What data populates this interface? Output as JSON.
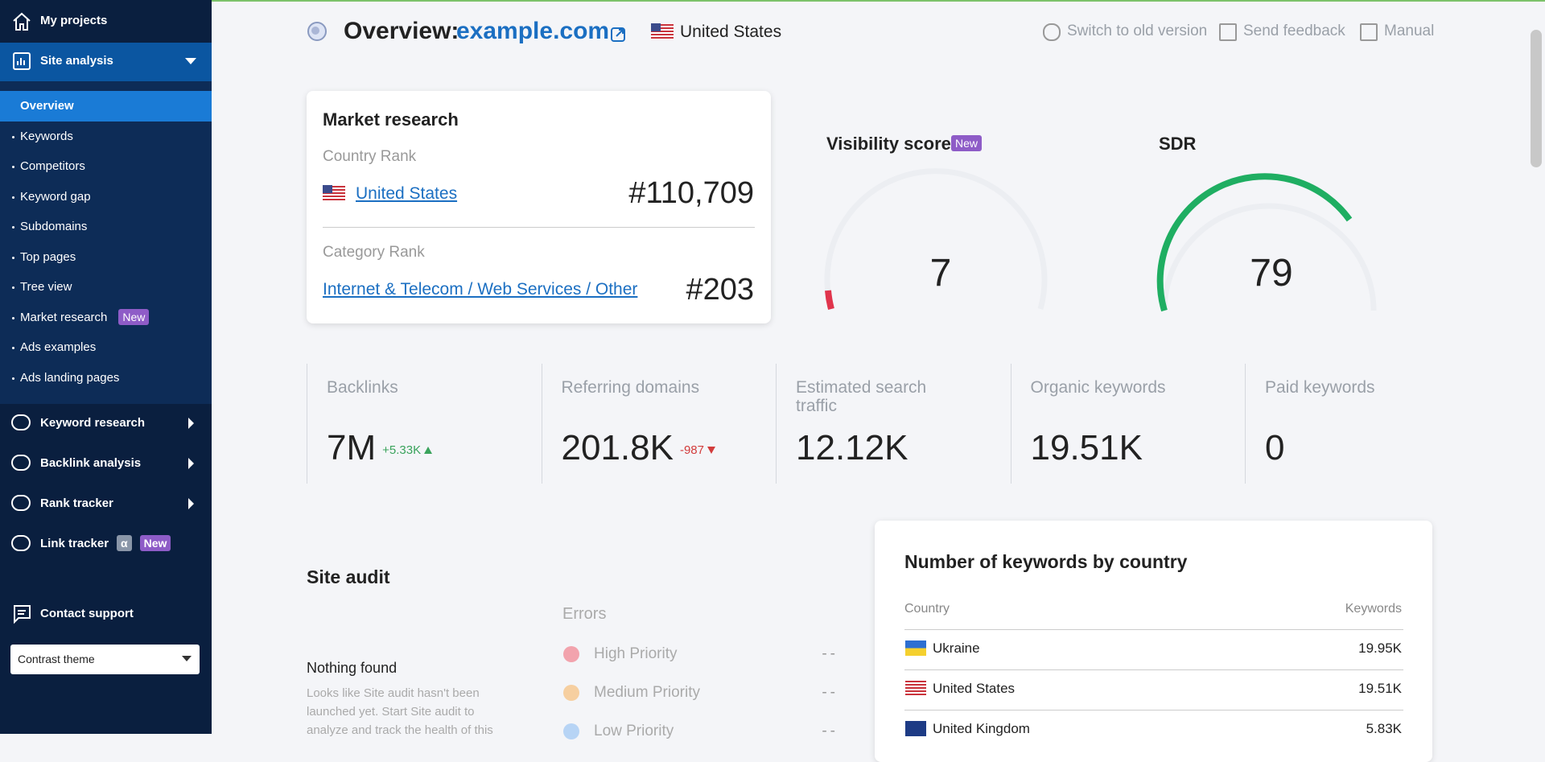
{
  "sidebar": {
    "my_projects": "My projects",
    "site_analysis": "Site analysis",
    "submenu": [
      {
        "label": "Overview"
      },
      {
        "label": "Keywords"
      },
      {
        "label": "Competitors"
      },
      {
        "label": "Keyword gap"
      },
      {
        "label": "Subdomains"
      },
      {
        "label": "Top pages"
      },
      {
        "label": "Tree view"
      },
      {
        "label": "Market research",
        "badge": "New"
      },
      {
        "label": "Ads examples"
      },
      {
        "label": "Ads landing pages"
      }
    ],
    "sections": [
      {
        "label": "Keyword research"
      },
      {
        "label": "Backlink analysis"
      },
      {
        "label": "Rank tracker"
      },
      {
        "label": "Link tracker",
        "badges": [
          "α",
          "New"
        ]
      }
    ],
    "contact_support": "Contact support",
    "theme": "Contrast theme"
  },
  "header": {
    "title": "Overview:",
    "domain": "example.com",
    "country": "United States",
    "links": [
      "Switch to old version",
      "Send feedback",
      "Manual"
    ]
  },
  "market_research": {
    "title": "Market research",
    "country_rank_label": "Country Rank",
    "country": "United States",
    "country_rank": "#110,709",
    "category_rank_label": "Category Rank",
    "category": "Internet & Telecom / Web Services / Other",
    "category_rank": "#203"
  },
  "visibility": {
    "title": "Visibility score",
    "badge": "New",
    "value": 7
  },
  "sdr": {
    "title": "SDR",
    "value": 79
  },
  "metrics": [
    {
      "label": "Backlinks",
      "value": "7M",
      "change": "+5.33K"
    },
    {
      "label": "Referring domains",
      "value": "201.8K",
      "change": "-987"
    },
    {
      "label": "Estimated search traffic",
      "value": "12.12K"
    },
    {
      "label": "Organic keywords",
      "value": "19.51K"
    },
    {
      "label": "Paid keywords",
      "value": 0
    }
  ],
  "site_audit": {
    "title": "Site audit",
    "status": "Nothing found",
    "description": "Looks like Site audit hasn't been launched yet. Start Site audit to analyze and track the health of this",
    "errors_title": "Errors",
    "priorities": [
      {
        "label": "High Priority",
        "value": "--"
      },
      {
        "label": "Medium Priority",
        "value": "--"
      },
      {
        "label": "Low Priority",
        "value": "--"
      }
    ]
  },
  "keywords_by_country": {
    "title": "Number of keywords by country",
    "columns": [
      "Country",
      "Keywords"
    ],
    "rows": [
      [
        "Ukraine",
        "19.95K"
      ],
      [
        "United States",
        "19.51K"
      ],
      [
        "United Kingdom",
        "5.83K"
      ]
    ]
  }
}
